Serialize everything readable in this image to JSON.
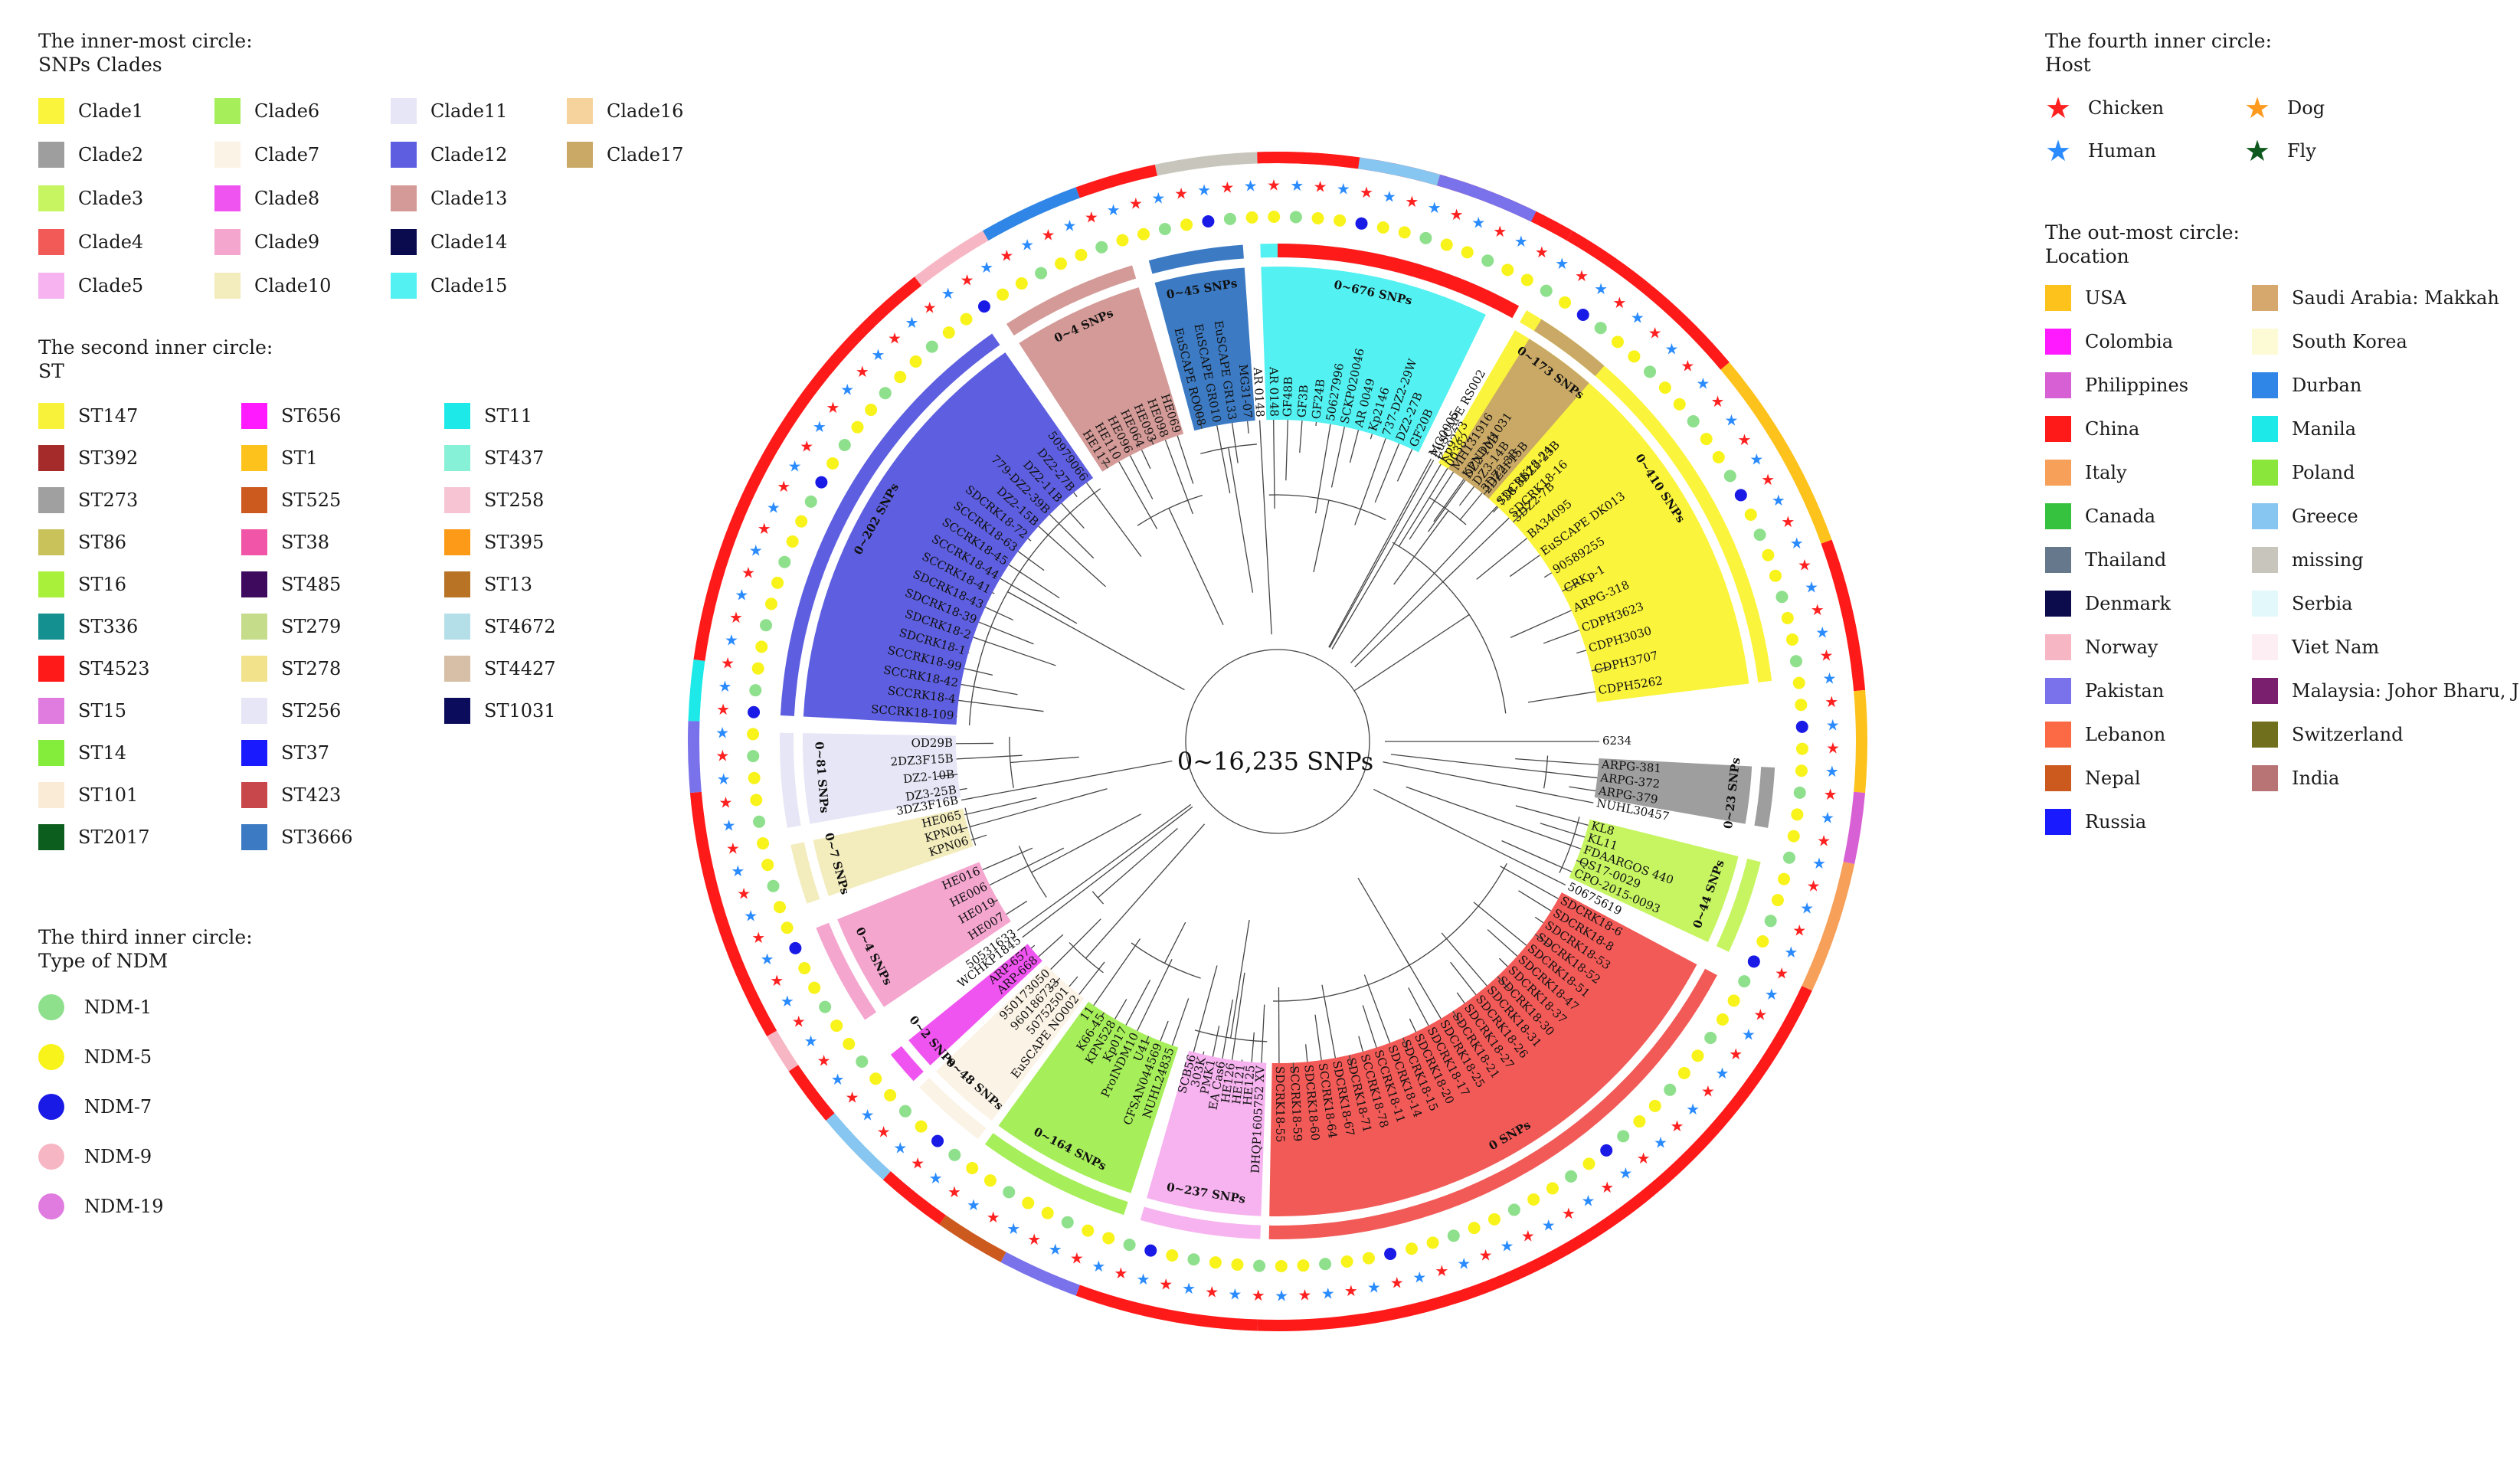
{
  "center_label": "0~16,235 SNPs",
  "legends": {
    "clades": {
      "title": [
        "The  inner-most circle:",
        "SNPs Clades"
      ],
      "items": [
        {
          "label": "Clade1",
          "color": "#fbf43c"
        },
        {
          "label": "Clade2",
          "color": "#9e9e9e"
        },
        {
          "label": "Clade3",
          "color": "#c7f562"
        },
        {
          "label": "Clade4",
          "color": "#f25a57"
        },
        {
          "label": "Clade5",
          "color": "#f6b3ef"
        },
        {
          "label": "Clade6",
          "color": "#a6ee5a"
        },
        {
          "label": "Clade7",
          "color": "#fbf3e6"
        },
        {
          "label": "Clade8",
          "color": "#f054f0"
        },
        {
          "label": "Clade9",
          "color": "#f4a6cf"
        },
        {
          "label": "Clade10",
          "color": "#f3ecbd"
        },
        {
          "label": "Clade11",
          "color": "#e6e6f6"
        },
        {
          "label": "Clade12",
          "color": "#5e5fe0"
        },
        {
          "label": "Clade13",
          "color": "#d39a97"
        },
        {
          "label": "Clade14",
          "color": "#0a0a4e"
        },
        {
          "label": "Clade15",
          "color": "#53f1f1"
        },
        {
          "label": "Clade16",
          "color": "#f6d39d"
        },
        {
          "label": "Clade17",
          "color": "#c9a965"
        }
      ]
    },
    "st": {
      "title": [
        "The  second inner circle:",
        "ST"
      ],
      "items": [
        {
          "label": "ST147",
          "color": "#f8f23a"
        },
        {
          "label": "ST392",
          "color": "#a52a2a"
        },
        {
          "label": "ST273",
          "color": "#a0a0a0"
        },
        {
          "label": "ST86",
          "color": "#c9c25a"
        },
        {
          "label": "ST16",
          "color": "#a8f03a"
        },
        {
          "label": "ST336",
          "color": "#149090"
        },
        {
          "label": "ST4523",
          "color": "#ff1a1a"
        },
        {
          "label": "ST15",
          "color": "#e07be0"
        },
        {
          "label": "ST14",
          "color": "#84ec3a"
        },
        {
          "label": "ST101",
          "color": "#faebd7"
        },
        {
          "label": "ST2017",
          "color": "#0b5e1e"
        },
        {
          "label": "ST656",
          "color": "#ff1aff"
        },
        {
          "label": "ST1",
          "color": "#fdc31c"
        },
        {
          "label": "ST525",
          "color": "#cc5a1f"
        },
        {
          "label": "ST38",
          "color": "#f055a8"
        },
        {
          "label": "ST485",
          "color": "#3d0a5e"
        },
        {
          "label": "ST279",
          "color": "#c5dc8a"
        },
        {
          "label": "ST278",
          "color": "#f2e28c"
        },
        {
          "label": "ST256",
          "color": "#e6e6f6"
        },
        {
          "label": "ST37",
          "color": "#1a1aff"
        },
        {
          "label": "ST423",
          "color": "#c8474a"
        },
        {
          "label": "ST3666",
          "color": "#3c7bc4"
        },
        {
          "label": "ST11",
          "color": "#1ee9e9"
        },
        {
          "label": "ST437",
          "color": "#86f1d6"
        },
        {
          "label": "ST258",
          "color": "#f6c4d2"
        },
        {
          "label": "ST395",
          "color": "#fd9a18"
        },
        {
          "label": "ST13",
          "color": "#b87424"
        },
        {
          "label": "ST4672",
          "color": "#b5dfe8"
        },
        {
          "label": "ST4427",
          "color": "#d6bfa6"
        },
        {
          "label": "ST1031",
          "color": "#0c0c5c"
        }
      ]
    },
    "ndm": {
      "title": [
        "The  third inner circle:",
        "Type of NDM"
      ],
      "items": [
        {
          "label": "NDM-1",
          "color": "#8ee08c"
        },
        {
          "label": "NDM-5",
          "color": "#f8f31a"
        },
        {
          "label": "NDM-7",
          "color": "#1a1ae6"
        },
        {
          "label": "NDM-9",
          "color": "#f7b6c3"
        },
        {
          "label": "NDM-19",
          "color": "#e07be0"
        }
      ]
    },
    "host": {
      "title": [
        "The  fourth inner circle:",
        "Host"
      ],
      "items": [
        {
          "label": "Chicken",
          "color": "#ff2020",
          "icon": "star-icon"
        },
        {
          "label": "Dog",
          "color": "#ff9a1e",
          "icon": "star-icon"
        },
        {
          "label": "Human",
          "color": "#2a8bff",
          "icon": "star-icon"
        },
        {
          "label": "Fly",
          "color": "#0e5a1e",
          "icon": "star-icon"
        }
      ]
    },
    "location": {
      "title": [
        "The  out-most circle:",
        "Location"
      ],
      "items": [
        {
          "label": "USA",
          "color": "#fdc31c"
        },
        {
          "label": "Colombia",
          "color": "#ff1aff"
        },
        {
          "label": "Philippines",
          "color": "#d760d4"
        },
        {
          "label": "China",
          "color": "#ff1a1a"
        },
        {
          "label": "Italy",
          "color": "#f6a05a"
        },
        {
          "label": "Canada",
          "color": "#36c23e"
        },
        {
          "label": "Thailand",
          "color": "#66788c"
        },
        {
          "label": "Denmark",
          "color": "#0c0c4c"
        },
        {
          "label": "Norway",
          "color": "#f7b6c3"
        },
        {
          "label": "Pakistan",
          "color": "#7a72ea"
        },
        {
          "label": "Lebanon",
          "color": "#fb6a45"
        },
        {
          "label": "Nepal",
          "color": "#cc5a1f"
        },
        {
          "label": "Russia",
          "color": "#1a1aff"
        },
        {
          "label": "Saudi Arabia: Makkah",
          "color": "#d6a86e"
        },
        {
          "label": "South Korea",
          "color": "#fdfbd6"
        },
        {
          "label": "Durban",
          "color": "#2f86e6"
        },
        {
          "label": "Manila",
          "color": "#1ee9e9"
        },
        {
          "label": "Poland",
          "color": "#8ae63a"
        },
        {
          "label": "Greece",
          "color": "#86c6f0"
        },
        {
          "label": "missing",
          "color": "#c8c6bc"
        },
        {
          "label": "Serbia",
          "color": "#e2f8fa"
        },
        {
          "label": "Viet Nam",
          "color": "#fdeef3"
        },
        {
          "label": "Malaysia: Johor Bharu, Johor",
          "color": "#7a1f6e"
        },
        {
          "label": "Switzerland",
          "color": "#6f6f1e"
        },
        {
          "label": "India",
          "color": "#b87474"
        }
      ]
    }
  },
  "tree": {
    "clades": [
      {
        "name": "Clade1",
        "color": "#fbf43c",
        "snp": "0~410 SNPs",
        "a0": -60,
        "a1": -7,
        "taxa": [
          "00382",
          "DZ2-10B",
          "3DZ2-3B",
          "738-3DZ2-23B",
          "3DZ2-7B",
          "BA34095",
          "EuSCAPE DK013",
          "90589255",
          "CRKp-1",
          "ARPG-318",
          "CDPH3623",
          "CDPH3030",
          "CDPH3707",
          "CDPH5262"
        ]
      },
      {
        "name": "Clade2",
        "color": "#9e9e9e",
        "snp": "0~23 SNPs",
        "a0": 3,
        "a1": 10,
        "taxa": [
          "ARPG-381",
          "ARPG-372",
          "ARPG-379"
        ]
      },
      {
        "name": "Clade6",
        "color": "#c7f562",
        "snp": "0~44 SNPs",
        "a0": 14,
        "a1": 25,
        "taxa": [
          "KL8",
          "KL11",
          "FDAARGOS 440",
          "QS17-0029",
          "CPO-2015-0093"
        ]
      },
      {
        "name": "Clade4",
        "color": "#f25a57",
        "snp": "0 SNPs",
        "a0": 28,
        "a1": 91,
        "taxa": [
          "SDCRK18-6",
          "SDCRK18-8",
          "SDCRK18-53",
          "SDCRK18-52",
          "SDCRK18-51",
          "SDCRK18-47",
          "SDCRK18-37",
          "SDCRK18-30",
          "SDCRK18-31",
          "SDCRK18-26",
          "SDCRK18-27",
          "SDCRK18-21",
          "SDCRK18-25",
          "SDCRK18-17",
          "SDCRK18-20",
          "SDCRK18-15",
          "SDCRK18-14",
          "SCCRK18-11",
          "SCCRK18-78",
          "SDCRK18-71",
          "SDCRK18-67",
          "SCCRK18-64",
          "SDCRK18-60",
          "SCCRK18-59",
          "SDCRK18-55"
        ]
      },
      {
        "name": "Clade5",
        "color": "#f6b3ef",
        "snp": "0~237 SNPs",
        "a0": 92,
        "a1": 106,
        "taxa": [
          "DHQP1605752 XV",
          "HE125",
          "HE121",
          "HE126",
          "EA Cas6",
          "PMK1",
          "303K",
          "SCB56"
        ]
      },
      {
        "name": "Clade3",
        "color": "#a6ee5a",
        "snp": "0~164 SNPs",
        "a0": 108,
        "a1": 126,
        "taxa": [
          "NUHL24835",
          "CFSAN044569",
          "U41",
          "ProINDM10",
          "Kp017",
          "KPN528",
          "K66-45",
          "11"
        ]
      },
      {
        "name": "Clade7",
        "color": "#fbf3e6",
        "snp": "0~48 SNPs",
        "a0": 127,
        "a1": 136,
        "taxa": [
          "EuSCAPE NO002",
          "50752501",
          "960186733",
          "950173050"
        ]
      },
      {
        "name": "Clade8",
        "color": "#f054f0",
        "snp": "0~2 SNPs",
        "a0": 137,
        "a1": 141,
        "taxa": [
          "ARP-668",
          "ARP-657"
        ]
      },
      {
        "name": "Clade9",
        "color": "#f4a6cf",
        "snp": "0~4 SNPs",
        "a0": 146,
        "a1": 158,
        "taxa": [
          "HE007",
          "HE019",
          "HE006",
          "HE016"
        ]
      },
      {
        "name": "Clade10",
        "color": "#f3ecbd",
        "snp": "0~7 SNPs",
        "a0": 161,
        "a1": 168,
        "taxa": [
          "KPN06",
          "KPN01",
          "HE065"
        ]
      },
      {
        "name": "Clade11",
        "color": "#e6e6f6",
        "snp": "0~81 SNPs",
        "a0": 170,
        "a1": 181,
        "taxa": [
          "DZ3-25B",
          "DZ2-10B",
          "2DZ3F15B",
          "OD29B"
        ]
      },
      {
        "name": "Clade12",
        "color": "#5e5fe0",
        "snp": "0~202 SNPs",
        "a0": 183,
        "a1": 235,
        "taxa": [
          "SCCRK18-109",
          "SCCRK18-4",
          "SCCRK18-42",
          "SCCRK18-99",
          "SDCRK18-1",
          "SDCRK18-2",
          "SDCRK18-39",
          "SDCRK18-43",
          "SCCRK18-41",
          "SCCRK18-44",
          "SCCRK18-45",
          "SCCRK18-63",
          "SDCRK18-72",
          "DZ2-15B",
          "779-DZ2-39B",
          "DZ2-11B",
          "DZ2-27B",
          "50979066"
        ]
      },
      {
        "name": "Clade13",
        "color": "#d39a97",
        "snp": "0~4 SNPs",
        "a0": 237,
        "a1": 253,
        "taxa": [
          "HE117",
          "HE110",
          "HE096",
          "HE064",
          "HE093",
          "HE098",
          "HE069"
        ]
      },
      {
        "name": "Clade16",
        "color": "#3c7bc4",
        "snp": "0~45 SNPs",
        "a0": 255,
        "a1": 266,
        "taxa": [
          "EuSCAPE RO008",
          "EuSCAPE GR010",
          "EuSCAPE GR133",
          "MG31-07"
        ]
      },
      {
        "name": "Clade15",
        "color": "#53f1f1",
        "snp": "0~676 SNPs",
        "a0": 268,
        "a1": 296,
        "taxa": [
          "AR 0148",
          "GF48B",
          "GF3B",
          "GF24B",
          "50627996",
          "SCKP020046",
          "AR 0049",
          "Kp2146",
          "737-DZ2-29W",
          "DZ2-27B",
          "GF20B"
        ]
      },
      {
        "name": "Clade17",
        "color": "#c9a965",
        "snp": "0~173 SNPs",
        "a0": 302,
        "a1": 311,
        "taxa": [
          "MH131916",
          "KPNDM1031",
          "DZ3-14B",
          "2DZ2F15B"
        ]
      }
    ],
    "loose_taxa": [
      {
        "label": "6234",
        "a": 0
      },
      {
        "label": "NUHL30457",
        "a": 11
      },
      {
        "label": "50675619",
        "a": 26.5
      },
      {
        "label": "50531633",
        "a": 144
      },
      {
        "label": "WCHKP1845",
        "a": 142.5
      },
      {
        "label": "3DZ3F16B",
        "a": 169.5
      },
      {
        "label": "EuSCAPE RS002",
        "a": 299
      },
      {
        "label": "Kp9273",
        "a": 300.5
      },
      {
        "label": "SDCRK18-24",
        "a": 313
      },
      {
        "label": "SDCRK18-16",
        "a": 316
      },
      {
        "label": "AR 0148",
        "a": 266.8
      },
      {
        "label": "MG0005",
        "a": -61.5
      }
    ]
  }
}
